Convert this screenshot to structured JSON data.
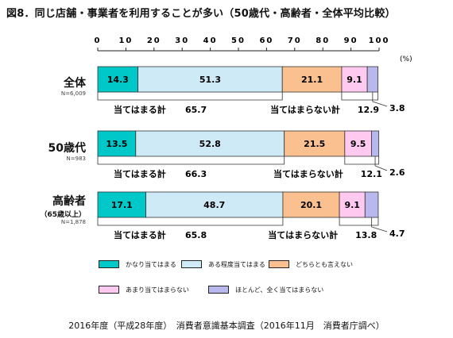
{
  "title": "図8．同じ店舗・事業者を利用することが多い（50歳代・高齢者・全体平均比較）",
  "unit_label": "(%)",
  "colors": {
    "s1": "#00c8c8",
    "s2": "#cfeaf7",
    "s3": "#fac090",
    "s4": "#ffc9f0",
    "s5": "#b8b8ec"
  },
  "rows": [
    {
      "label": "全体",
      "sublabel": "",
      "n": "N=6,009",
      "agree_label": "当てはまる計",
      "agree_total": "65.7",
      "disagree_label": "当てはまらない計",
      "disagree_total": "12.9",
      "last_label": "3.8"
    },
    {
      "label": "50歳代",
      "sublabel": "",
      "n": "N=983",
      "agree_label": "当てはまる計",
      "agree_total": "66.3",
      "disagree_label": "当てはまらない計",
      "disagree_total": "12.1",
      "last_label": "2.6"
    },
    {
      "label": "高齢者",
      "sublabel": "（65歳以上）",
      "n": "N=1,878",
      "agree_label": "当てはまる計",
      "agree_total": "65.8",
      "disagree_label": "当てはまらない計",
      "disagree_total": "13.8",
      "last_label": "4.7"
    }
  ],
  "chart_data": {
    "type": "bar",
    "stacked": true,
    "orientation": "horizontal",
    "categories": [
      "全体",
      "50歳代",
      "高齢者"
    ],
    "series": [
      {
        "name": "かなり当てはまる",
        "values": [
          14.3,
          13.5,
          17.1
        ]
      },
      {
        "name": "ある程度当てはまる",
        "values": [
          51.3,
          52.8,
          48.7
        ]
      },
      {
        "name": "どちらとも言えない",
        "values": [
          21.1,
          21.5,
          20.1
        ]
      },
      {
        "name": "あまり当てはまらない",
        "values": [
          9.1,
          9.5,
          9.1
        ]
      },
      {
        "name": "ほとんど、全く当てはまらない",
        "values": [
          3.8,
          2.6,
          4.7
        ]
      }
    ],
    "xlim": [
      0,
      100
    ],
    "xticks": [
      "0",
      "10",
      "20",
      "30",
      "40",
      "50",
      "60",
      "70",
      "80",
      "90",
      "100"
    ],
    "legend_position": "bottom"
  },
  "footer": "2016年度（平成28年度）　消費者意識基本調査（2016年11月　消費者庁調べ）"
}
